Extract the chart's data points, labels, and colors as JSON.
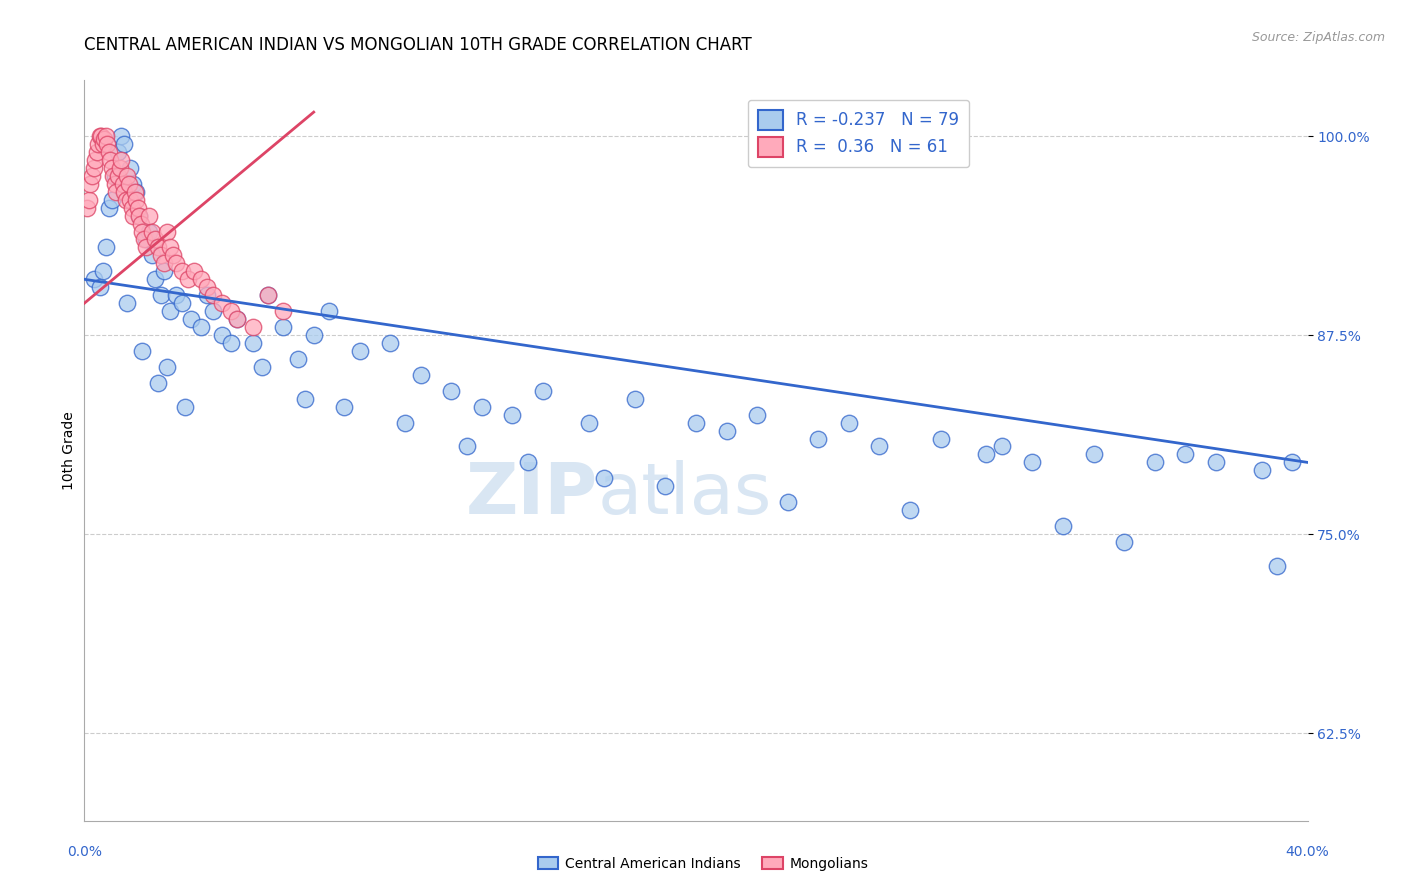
{
  "title": "CENTRAL AMERICAN INDIAN VS MONGOLIAN 10TH GRADE CORRELATION CHART",
  "source": "Source: ZipAtlas.com",
  "ylabel": "10th Grade",
  "blue_label": "Central American Indians",
  "pink_label": "Mongolians",
  "blue_R": -0.237,
  "blue_N": 79,
  "pink_R": 0.36,
  "pink_N": 61,
  "blue_color": "#aaccee",
  "pink_color": "#ffaabb",
  "blue_line_color": "#3366cc",
  "pink_line_color": "#dd4466",
  "xmin": 0.0,
  "xmax": 40.0,
  "ymin": 57.0,
  "ymax": 103.5,
  "yticks": [
    62.5,
    75.0,
    87.5,
    100.0
  ],
  "ytick_labels": [
    "62.5%",
    "75.0%",
    "87.5%",
    "100.0%"
  ],
  "blue_scatter_x": [
    0.3,
    0.5,
    0.6,
    0.7,
    0.8,
    0.9,
    1.0,
    1.1,
    1.2,
    1.3,
    1.5,
    1.6,
    1.7,
    1.8,
    2.0,
    2.1,
    2.2,
    2.3,
    2.5,
    2.6,
    2.8,
    3.0,
    3.2,
    3.5,
    3.8,
    4.0,
    4.2,
    4.5,
    5.0,
    5.5,
    6.0,
    6.5,
    7.0,
    7.5,
    8.0,
    9.0,
    10.0,
    11.0,
    12.0,
    13.0,
    14.0,
    15.0,
    16.5,
    18.0,
    20.0,
    21.0,
    22.0,
    24.0,
    25.0,
    26.0,
    28.0,
    29.5,
    30.0,
    31.0,
    33.0,
    35.0,
    36.0,
    37.0,
    38.5,
    39.5,
    1.4,
    1.9,
    2.4,
    2.7,
    3.3,
    4.8,
    5.8,
    7.2,
    8.5,
    10.5,
    12.5,
    14.5,
    17.0,
    19.0,
    23.0,
    27.0,
    32.0,
    34.0,
    39.0
  ],
  "blue_scatter_y": [
    91.0,
    90.5,
    91.5,
    93.0,
    95.5,
    96.0,
    97.5,
    99.0,
    100.0,
    99.5,
    98.0,
    97.0,
    96.5,
    95.0,
    93.5,
    94.0,
    92.5,
    91.0,
    90.0,
    91.5,
    89.0,
    90.0,
    89.5,
    88.5,
    88.0,
    90.0,
    89.0,
    87.5,
    88.5,
    87.0,
    90.0,
    88.0,
    86.0,
    87.5,
    89.0,
    86.5,
    87.0,
    85.0,
    84.0,
    83.0,
    82.5,
    84.0,
    82.0,
    83.5,
    82.0,
    81.5,
    82.5,
    81.0,
    82.0,
    80.5,
    81.0,
    80.0,
    80.5,
    79.5,
    80.0,
    79.5,
    80.0,
    79.5,
    79.0,
    79.5,
    89.5,
    86.5,
    84.5,
    85.5,
    83.0,
    87.0,
    85.5,
    83.5,
    83.0,
    82.0,
    80.5,
    79.5,
    78.5,
    78.0,
    77.0,
    76.5,
    75.5,
    74.5,
    73.0
  ],
  "pink_scatter_x": [
    0.1,
    0.15,
    0.2,
    0.25,
    0.3,
    0.35,
    0.4,
    0.45,
    0.5,
    0.55,
    0.6,
    0.65,
    0.7,
    0.75,
    0.8,
    0.85,
    0.9,
    0.95,
    1.0,
    1.05,
    1.1,
    1.15,
    1.2,
    1.25,
    1.3,
    1.35,
    1.4,
    1.45,
    1.5,
    1.55,
    1.6,
    1.65,
    1.7,
    1.75,
    1.8,
    1.85,
    1.9,
    1.95,
    2.0,
    2.1,
    2.2,
    2.3,
    2.4,
    2.5,
    2.6,
    2.7,
    2.8,
    2.9,
    3.0,
    3.2,
    3.4,
    3.6,
    3.8,
    4.0,
    4.2,
    4.5,
    4.8,
    5.0,
    5.5,
    6.0,
    6.5
  ],
  "pink_scatter_y": [
    95.5,
    96.0,
    97.0,
    97.5,
    98.0,
    98.5,
    99.0,
    99.5,
    100.0,
    100.0,
    99.5,
    99.8,
    100.0,
    99.5,
    99.0,
    98.5,
    98.0,
    97.5,
    97.0,
    96.5,
    97.5,
    98.0,
    98.5,
    97.0,
    96.5,
    96.0,
    97.5,
    97.0,
    96.0,
    95.5,
    95.0,
    96.5,
    96.0,
    95.5,
    95.0,
    94.5,
    94.0,
    93.5,
    93.0,
    95.0,
    94.0,
    93.5,
    93.0,
    92.5,
    92.0,
    94.0,
    93.0,
    92.5,
    92.0,
    91.5,
    91.0,
    91.5,
    91.0,
    90.5,
    90.0,
    89.5,
    89.0,
    88.5,
    88.0,
    90.0,
    89.0
  ],
  "blue_trend_x": [
    0.0,
    40.0
  ],
  "blue_trend_y": [
    91.0,
    79.5
  ],
  "pink_trend_x": [
    0.0,
    7.5
  ],
  "pink_trend_y": [
    89.5,
    101.5
  ],
  "watermark_zip": "ZIP",
  "watermark_atlas": "atlas",
  "title_fontsize": 12,
  "axis_label_fontsize": 10,
  "tick_fontsize": 10,
  "legend_fontsize": 12
}
